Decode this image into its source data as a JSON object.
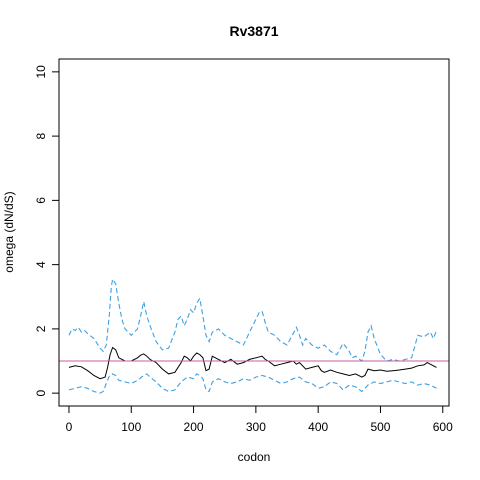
{
  "chart_data": {
    "type": "line",
    "title": "Rv3871",
    "xlabel": "codon",
    "ylabel": "omega (dN/dS)",
    "xlim": [
      -16,
      610
    ],
    "ylim": [
      -0.4,
      10.4
    ],
    "x_ticks": [
      0,
      100,
      200,
      300,
      400,
      500,
      600
    ],
    "y_ticks": [
      0,
      2,
      4,
      6,
      8,
      10
    ],
    "reference_line": {
      "y": 1,
      "color": "#c45fa0"
    },
    "series": [
      {
        "style": "solid",
        "color": "#000000",
        "x": [
          0,
          10,
          20,
          30,
          40,
          50,
          58,
          62,
          66,
          70,
          75,
          80,
          90,
          100,
          110,
          115,
          120,
          125,
          130,
          140,
          150,
          160,
          170,
          180,
          185,
          190,
          195,
          200,
          205,
          210,
          215,
          220,
          225,
          230,
          240,
          250,
          255,
          260,
          270,
          280,
          290,
          300,
          310,
          315,
          320,
          330,
          340,
          350,
          360,
          365,
          370,
          375,
          380,
          390,
          400,
          405,
          410,
          420,
          430,
          440,
          450,
          460,
          470,
          475,
          480,
          490,
          500,
          510,
          520,
          530,
          540,
          550,
          560,
          570,
          575,
          580,
          585,
          590
        ],
        "y": [
          0.8,
          0.85,
          0.82,
          0.7,
          0.55,
          0.45,
          0.5,
          0.8,
          1.2,
          1.42,
          1.35,
          1.1,
          1.0,
          1.0,
          1.1,
          1.18,
          1.22,
          1.15,
          1.05,
          0.95,
          0.75,
          0.6,
          0.65,
          0.95,
          1.15,
          1.1,
          1.0,
          1.15,
          1.25,
          1.2,
          1.1,
          0.7,
          0.75,
          1.15,
          1.05,
          0.95,
          1.0,
          1.05,
          0.9,
          0.95,
          1.05,
          1.1,
          1.15,
          1.05,
          1.0,
          0.85,
          0.9,
          0.95,
          1.0,
          0.9,
          0.95,
          0.85,
          0.75,
          0.8,
          0.85,
          0.7,
          0.65,
          0.72,
          0.65,
          0.6,
          0.55,
          0.6,
          0.5,
          0.55,
          0.75,
          0.7,
          0.72,
          0.68,
          0.7,
          0.72,
          0.75,
          0.78,
          0.85,
          0.88,
          0.95,
          0.9,
          0.85,
          0.8
        ]
      },
      {
        "style": "dashed",
        "color": "#3fa0e0",
        "x": [
          0,
          5,
          10,
          15,
          20,
          25,
          30,
          40,
          50,
          55,
          60,
          65,
          68,
          70,
          75,
          80,
          85,
          90,
          100,
          110,
          115,
          120,
          125,
          130,
          140,
          150,
          160,
          170,
          175,
          180,
          185,
          190,
          195,
          200,
          205,
          210,
          215,
          220,
          225,
          230,
          240,
          250,
          260,
          270,
          280,
          290,
          300,
          305,
          310,
          315,
          320,
          330,
          340,
          350,
          360,
          365,
          370,
          375,
          380,
          390,
          400,
          410,
          420,
          430,
          440,
          450,
          455,
          460,
          470,
          475,
          480,
          485,
          490,
          500,
          510,
          520,
          530,
          540,
          550,
          560,
          570,
          580,
          585,
          590
        ],
        "y": [
          1.8,
          2.0,
          1.95,
          2.05,
          1.9,
          1.95,
          1.85,
          1.7,
          1.4,
          1.3,
          1.5,
          2.5,
          3.3,
          3.55,
          3.4,
          2.8,
          2.3,
          2.0,
          1.8,
          2.0,
          2.4,
          2.85,
          2.4,
          2.1,
          1.6,
          1.35,
          1.4,
          1.9,
          2.3,
          2.4,
          2.1,
          2.3,
          2.6,
          2.5,
          2.8,
          2.95,
          2.4,
          1.8,
          1.6,
          1.9,
          2.0,
          1.8,
          1.7,
          1.6,
          1.5,
          1.9,
          2.3,
          2.5,
          2.55,
          2.2,
          1.9,
          1.8,
          1.6,
          1.5,
          1.85,
          2.05,
          1.8,
          1.5,
          1.7,
          1.5,
          1.4,
          1.5,
          1.3,
          1.2,
          1.55,
          1.3,
          1.1,
          1.15,
          1.0,
          1.3,
          1.9,
          2.1,
          1.7,
          1.2,
          1.0,
          1.05,
          1.0,
          1.05,
          1.1,
          1.8,
          1.75,
          1.9,
          1.7,
          1.95
        ]
      },
      {
        "style": "dashed",
        "color": "#3fa0e0",
        "x": [
          0,
          10,
          20,
          30,
          40,
          50,
          55,
          60,
          65,
          70,
          75,
          80,
          90,
          100,
          110,
          120,
          125,
          130,
          140,
          150,
          160,
          170,
          180,
          190,
          200,
          205,
          210,
          215,
          220,
          225,
          230,
          240,
          250,
          260,
          270,
          280,
          290,
          300,
          310,
          320,
          330,
          340,
          350,
          360,
          370,
          380,
          390,
          400,
          410,
          420,
          430,
          440,
          450,
          460,
          470,
          480,
          490,
          500,
          510,
          520,
          530,
          540,
          550,
          560,
          570,
          580,
          590
        ],
        "y": [
          0.1,
          0.15,
          0.2,
          0.15,
          0.05,
          0.0,
          0.05,
          0.3,
          0.55,
          0.6,
          0.55,
          0.4,
          0.35,
          0.3,
          0.4,
          0.55,
          0.6,
          0.5,
          0.35,
          0.15,
          0.05,
          0.1,
          0.35,
          0.5,
          0.45,
          0.6,
          0.55,
          0.45,
          0.1,
          0.05,
          0.35,
          0.45,
          0.35,
          0.3,
          0.35,
          0.45,
          0.4,
          0.5,
          0.55,
          0.5,
          0.4,
          0.3,
          0.35,
          0.45,
          0.5,
          0.35,
          0.3,
          0.15,
          0.2,
          0.35,
          0.3,
          0.1,
          0.25,
          0.2,
          0.05,
          0.25,
          0.35,
          0.3,
          0.35,
          0.4,
          0.35,
          0.3,
          0.35,
          0.25,
          0.3,
          0.25,
          0.15
        ]
      }
    ]
  }
}
